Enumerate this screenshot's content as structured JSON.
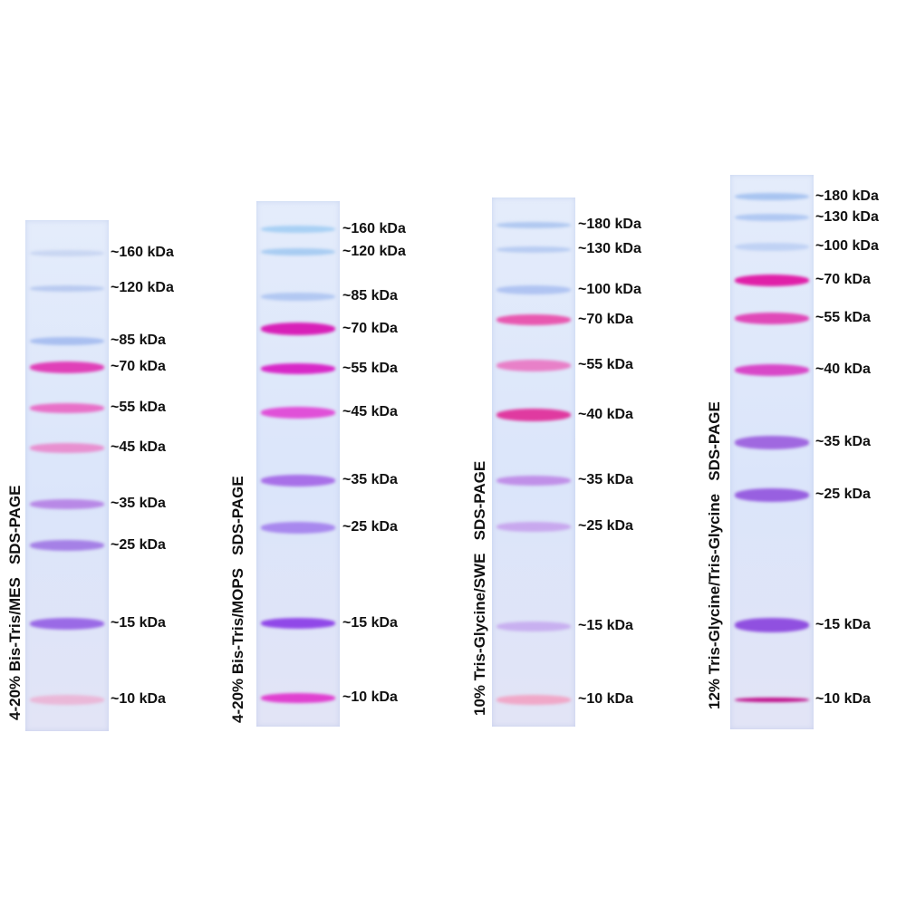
{
  "gels": [
    {
      "title": "4-20% Bis-Tris/MES   SDS-PAGE",
      "bands": [
        {
          "label": "~160 kDa",
          "color": "#c9d6f2"
        },
        {
          "label": "~120 kDa",
          "color": "#b9caf0"
        },
        {
          "label": "~85 kDa",
          "color": "#a9bff0"
        },
        {
          "label": "~70 kDa",
          "color": "#e040b8"
        },
        {
          "label": "~55 kDa",
          "color": "#e870c8"
        },
        {
          "label": "~45 kDa",
          "color": "#e890d0"
        },
        {
          "label": "~35 kDa",
          "color": "#b888e6"
        },
        {
          "label": "~25 kDa",
          "color": "#a580e6"
        },
        {
          "label": "~15 kDa",
          "color": "#9a6ae6"
        },
        {
          "label": "~10 kDa",
          "color": "#eab8d8"
        }
      ]
    },
    {
      "title": "4-20% Bis-Tris/MOPS   SDS-PAGE",
      "bands": [
        {
          "label": "~160 kDa",
          "color": "#a8d0f4"
        },
        {
          "label": "~120 kDa",
          "color": "#a8ccf2"
        },
        {
          "label": "~85 kDa",
          "color": "#b2c8f2"
        },
        {
          "label": "~70 kDa",
          "color": "#d820b8"
        },
        {
          "label": "~55 kDa",
          "color": "#d828c8"
        },
        {
          "label": "~45 kDa",
          "color": "#e050d8"
        },
        {
          "label": "~35 kDa",
          "color": "#a870e8"
        },
        {
          "label": "~25 kDa",
          "color": "#a888ee"
        },
        {
          "label": "~15 kDa",
          "color": "#9048e8"
        },
        {
          "label": "~10 kDa",
          "color": "#e040d0"
        }
      ]
    },
    {
      "title": "10% Tris-Glycine/SWE   SDS-PAGE",
      "bands": [
        {
          "label": "~180 kDa",
          "color": "#b0c8f0"
        },
        {
          "label": "~130 kDa",
          "color": "#b8ccf2"
        },
        {
          "label": "~100 kDa",
          "color": "#b0c4f2"
        },
        {
          "label": "~70 kDa",
          "color": "#e858b0"
        },
        {
          "label": "~55 kDa",
          "color": "#e880c8"
        },
        {
          "label": "~40 kDa",
          "color": "#e03aa0"
        },
        {
          "label": "~35 kDa",
          "color": "#c090e8"
        },
        {
          "label": "~25 kDa",
          "color": "#c8a8ee"
        },
        {
          "label": "~15 kDa",
          "color": "#c8b0f0"
        },
        {
          "label": "~10 kDa",
          "color": "#f0a8c8"
        }
      ]
    },
    {
      "title": "12% Tris-Glycine/Tris-Glycine   SDS-PAGE",
      "bands": [
        {
          "label": "~180 kDa",
          "color": "#a8c4f0"
        },
        {
          "label": "~130 kDa",
          "color": "#b0c8f2"
        },
        {
          "label": "~100 kDa",
          "color": "#c0d2f4"
        },
        {
          "label": "~70 kDa",
          "color": "#e020a8"
        },
        {
          "label": "~55 kDa",
          "color": "#e048b8"
        },
        {
          "label": "~40 kDa",
          "color": "#d848c8"
        },
        {
          "label": "~35 kDa",
          "color": "#a068e0"
        },
        {
          "label": "~25 kDa",
          "color": "#9860e0"
        },
        {
          "label": "~15 kDa",
          "color": "#9050e0"
        },
        {
          "label": "~10 kDa",
          "color": "#c0108c"
        }
      ]
    }
  ]
}
